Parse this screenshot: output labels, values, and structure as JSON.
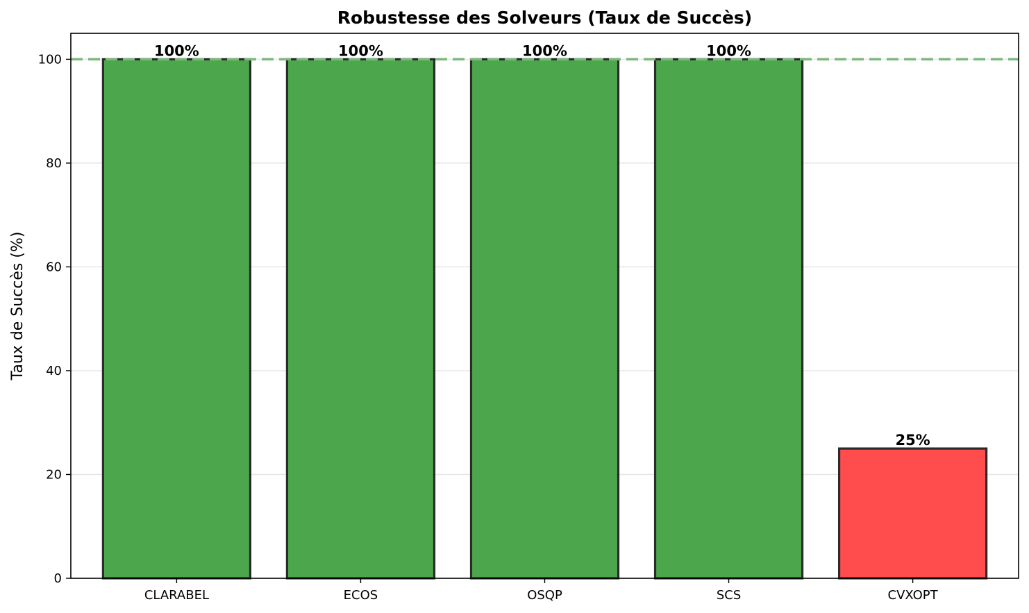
{
  "chart_data": {
    "type": "bar",
    "title": "Robustesse des Solveurs (Taux de Succès)",
    "xlabel": "",
    "ylabel": "Taux de Succès (%)",
    "categories": [
      "CLARABEL",
      "ECOS",
      "OSQP",
      "SCS",
      "CVXOPT"
    ],
    "values": [
      100,
      100,
      100,
      100,
      25
    ],
    "value_labels": [
      "100%",
      "100%",
      "100%",
      "100%",
      "25%"
    ],
    "bar_colors": [
      "#4ca64c",
      "#4ca64c",
      "#4ca64c",
      "#4ca64c",
      "#ff4c4c"
    ],
    "bar_edge_color": "#2b2b2b",
    "ylim": [
      0,
      105
    ],
    "yticks": [
      0,
      20,
      40,
      60,
      80,
      100
    ],
    "ytick_labels": [
      "0",
      "20",
      "40",
      "60",
      "80",
      "100"
    ],
    "reference_line": {
      "y": 100,
      "color": "#7cb87c",
      "style": "dashed"
    },
    "grid": {
      "axis": "y",
      "on": true
    },
    "legend": null
  }
}
